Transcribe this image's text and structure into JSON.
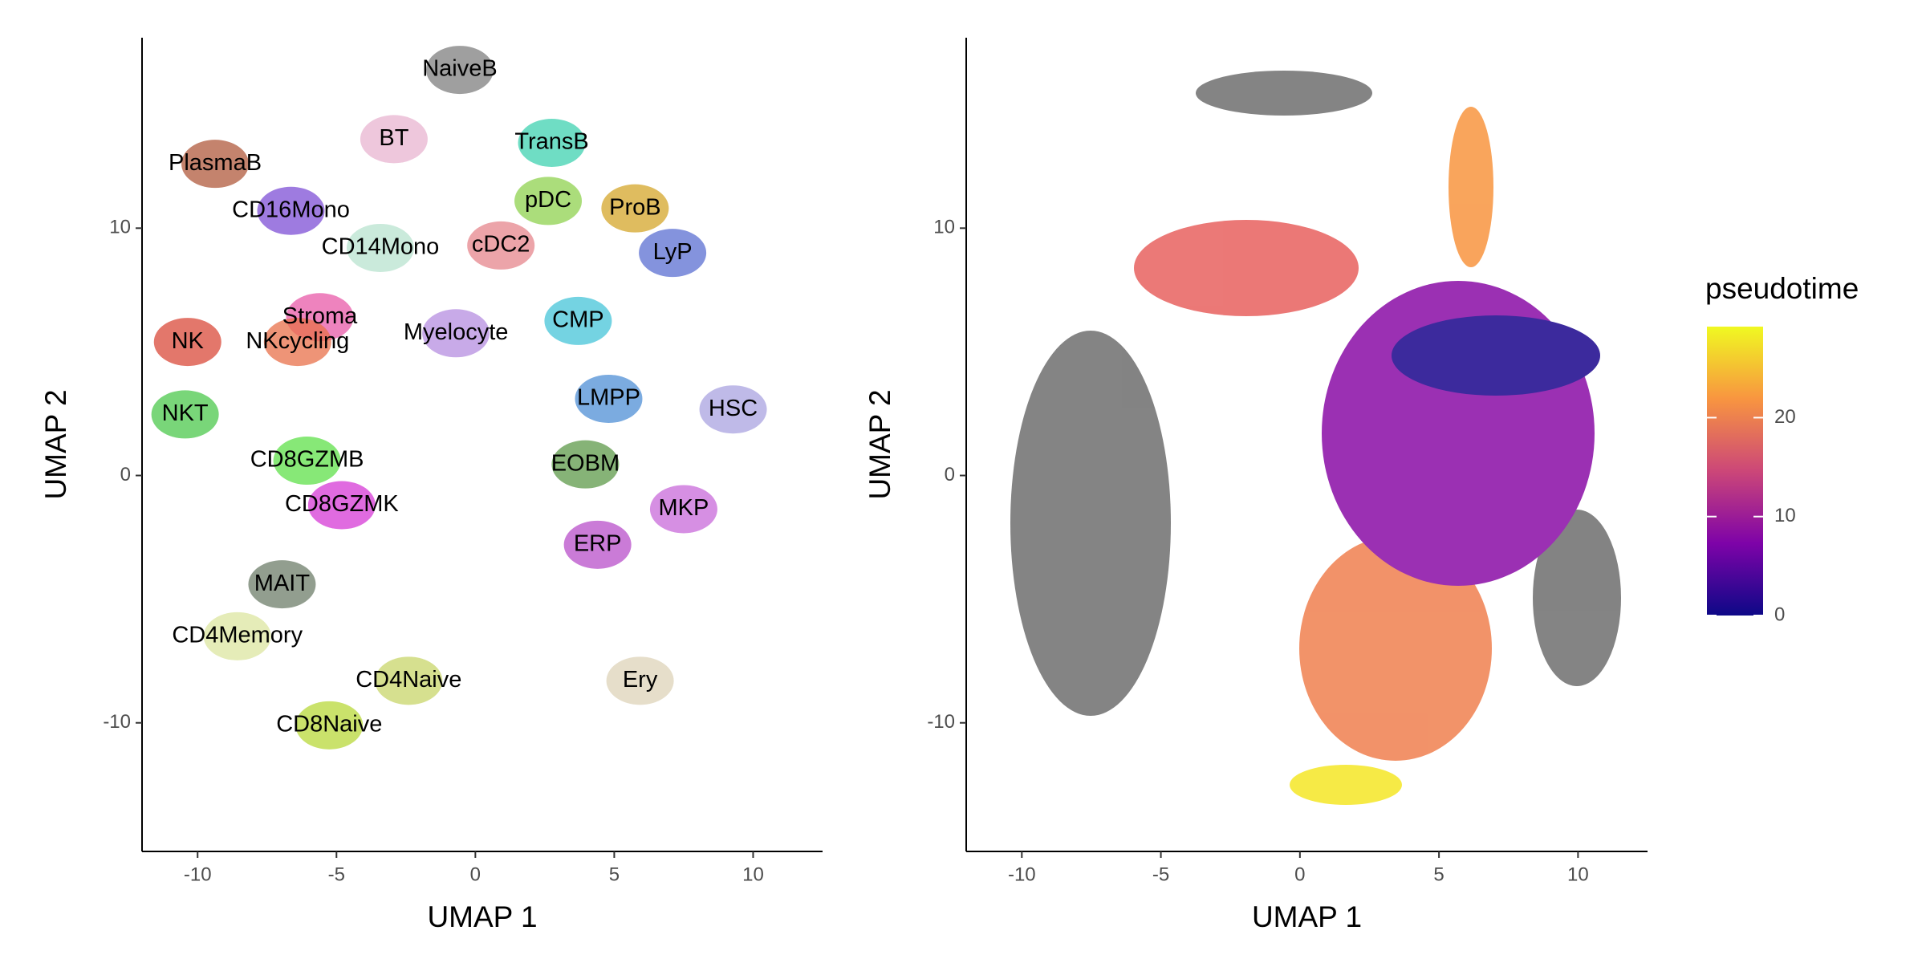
{
  "chart_data": [
    {
      "type": "scatter",
      "xlabel": "UMAP 1",
      "ylabel": "UMAP 2",
      "xlim": [
        -12,
        12.5
      ],
      "ylim": [
        -15.2,
        17.7
      ],
      "xticks": [
        -10,
        -5,
        0,
        5,
        10
      ],
      "yticks": [
        -10,
        0,
        10
      ],
      "labels": [
        {
          "text": "NaiveB",
          "x": -0.56,
          "y": 16.4,
          "color": "#7f7f7f"
        },
        {
          "text": "BT",
          "x": -2.93,
          "y": 13.6,
          "color": "#e8b4d0"
        },
        {
          "text": "TransB",
          "x": 2.75,
          "y": 13.45,
          "color": "#3fd1b0"
        },
        {
          "text": "PlasmaB",
          "x": -9.37,
          "y": 12.6,
          "color": "#b05a3c"
        },
        {
          "text": "CD16Mono",
          "x": -6.64,
          "y": 10.7,
          "color": "#7d4fd6"
        },
        {
          "text": "pDC",
          "x": 2.62,
          "y": 11.1,
          "color": "#8fd14f"
        },
        {
          "text": "ProB",
          "x": 5.75,
          "y": 10.8,
          "color": "#d4a62a"
        },
        {
          "text": "CD14Mono",
          "x": -3.42,
          "y": 9.2,
          "color": "#b8e3cf"
        },
        {
          "text": "cDC2",
          "x": 0.92,
          "y": 9.3,
          "color": "#e6868c"
        },
        {
          "text": "LyP",
          "x": 7.1,
          "y": 9.0,
          "color": "#5b6fd1"
        },
        {
          "text": "Stroma",
          "x": -5.6,
          "y": 6.4,
          "color": "#e85aa8"
        },
        {
          "text": "CMP",
          "x": 3.7,
          "y": 6.25,
          "color": "#45c4d8"
        },
        {
          "text": "NK",
          "x": -10.36,
          "y": 5.4,
          "color": "#d94a3a"
        },
        {
          "text": "NKcycling",
          "x": -6.4,
          "y": 5.4,
          "color": "#e8704a"
        },
        {
          "text": "Myelocyte",
          "x": -0.7,
          "y": 5.75,
          "color": "#b58ee0"
        },
        {
          "text": "LMPP",
          "x": 4.8,
          "y": 3.1,
          "color": "#4f8fd6"
        },
        {
          "text": "HSC",
          "x": 9.28,
          "y": 2.67,
          "color": "#a9a3e0"
        },
        {
          "text": "NKT",
          "x": -10.45,
          "y": 2.47,
          "color": "#4cc84c"
        },
        {
          "text": "CD8GZMB",
          "x": -6.06,
          "y": 0.6,
          "color": "#5fe04a"
        },
        {
          "text": "EOBM",
          "x": 3.96,
          "y": 0.45,
          "color": "#5e9a4a"
        },
        {
          "text": "CD8GZMK",
          "x": -4.81,
          "y": -1.2,
          "color": "#d63ad6"
        },
        {
          "text": "MKP",
          "x": 7.5,
          "y": -1.36,
          "color": "#c86ad9"
        },
        {
          "text": "ERP",
          "x": 4.4,
          "y": -2.8,
          "color": "#b84fc9"
        },
        {
          "text": "MAIT",
          "x": -6.96,
          "y": -4.4,
          "color": "#6e7d6a"
        },
        {
          "text": "CD4Memory",
          "x": -8.57,
          "y": -6.5,
          "color": "#dce6a0"
        },
        {
          "text": "CD4Naive",
          "x": -2.4,
          "y": -8.3,
          "color": "#c8d66a"
        },
        {
          "text": "Ery",
          "x": 5.93,
          "y": -8.3,
          "color": "#ddd3b8"
        },
        {
          "text": "CD8Naive",
          "x": -5.26,
          "y": -10.1,
          "color": "#b8d83a"
        }
      ]
    },
    {
      "type": "scatter",
      "xlabel": "UMAP 1",
      "ylabel": "UMAP 2",
      "xlim": [
        -12,
        12.5
      ],
      "ylim": [
        -15.2,
        17.7
      ],
      "xticks": [
        -10,
        -5,
        0,
        5,
        10
      ],
      "yticks": [
        -10,
        0,
        10
      ],
      "colorbar": {
        "title": "pseudotime",
        "lim": [
          0,
          29.2
        ],
        "ticks": [
          0,
          10,
          20
        ],
        "colors": [
          "#0d0887",
          "#7e03a8",
          "#cc4778",
          "#f89540",
          "#f0f921"
        ]
      }
    }
  ]
}
